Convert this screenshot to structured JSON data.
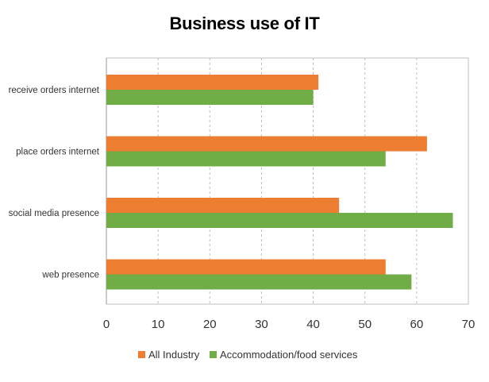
{
  "chart_data": {
    "type": "bar",
    "orientation": "horizontal",
    "title": "Business use of IT",
    "categories": [
      "receive orders internet",
      "place orders internet",
      "social media presence",
      "web presence"
    ],
    "series": [
      {
        "name": "All Industry",
        "color": "#ED7D31",
        "values": [
          41,
          62,
          45,
          54
        ]
      },
      {
        "name": "Accommodation/food services",
        "color": "#70AD47",
        "values": [
          40,
          54,
          67,
          59
        ]
      }
    ],
    "xlim": [
      0,
      70
    ],
    "xticks": [
      0,
      10,
      20,
      30,
      40,
      50,
      60,
      70
    ],
    "xlabel": "",
    "ylabel": "",
    "grid": "vertical dashed",
    "legend_position": "bottom"
  }
}
